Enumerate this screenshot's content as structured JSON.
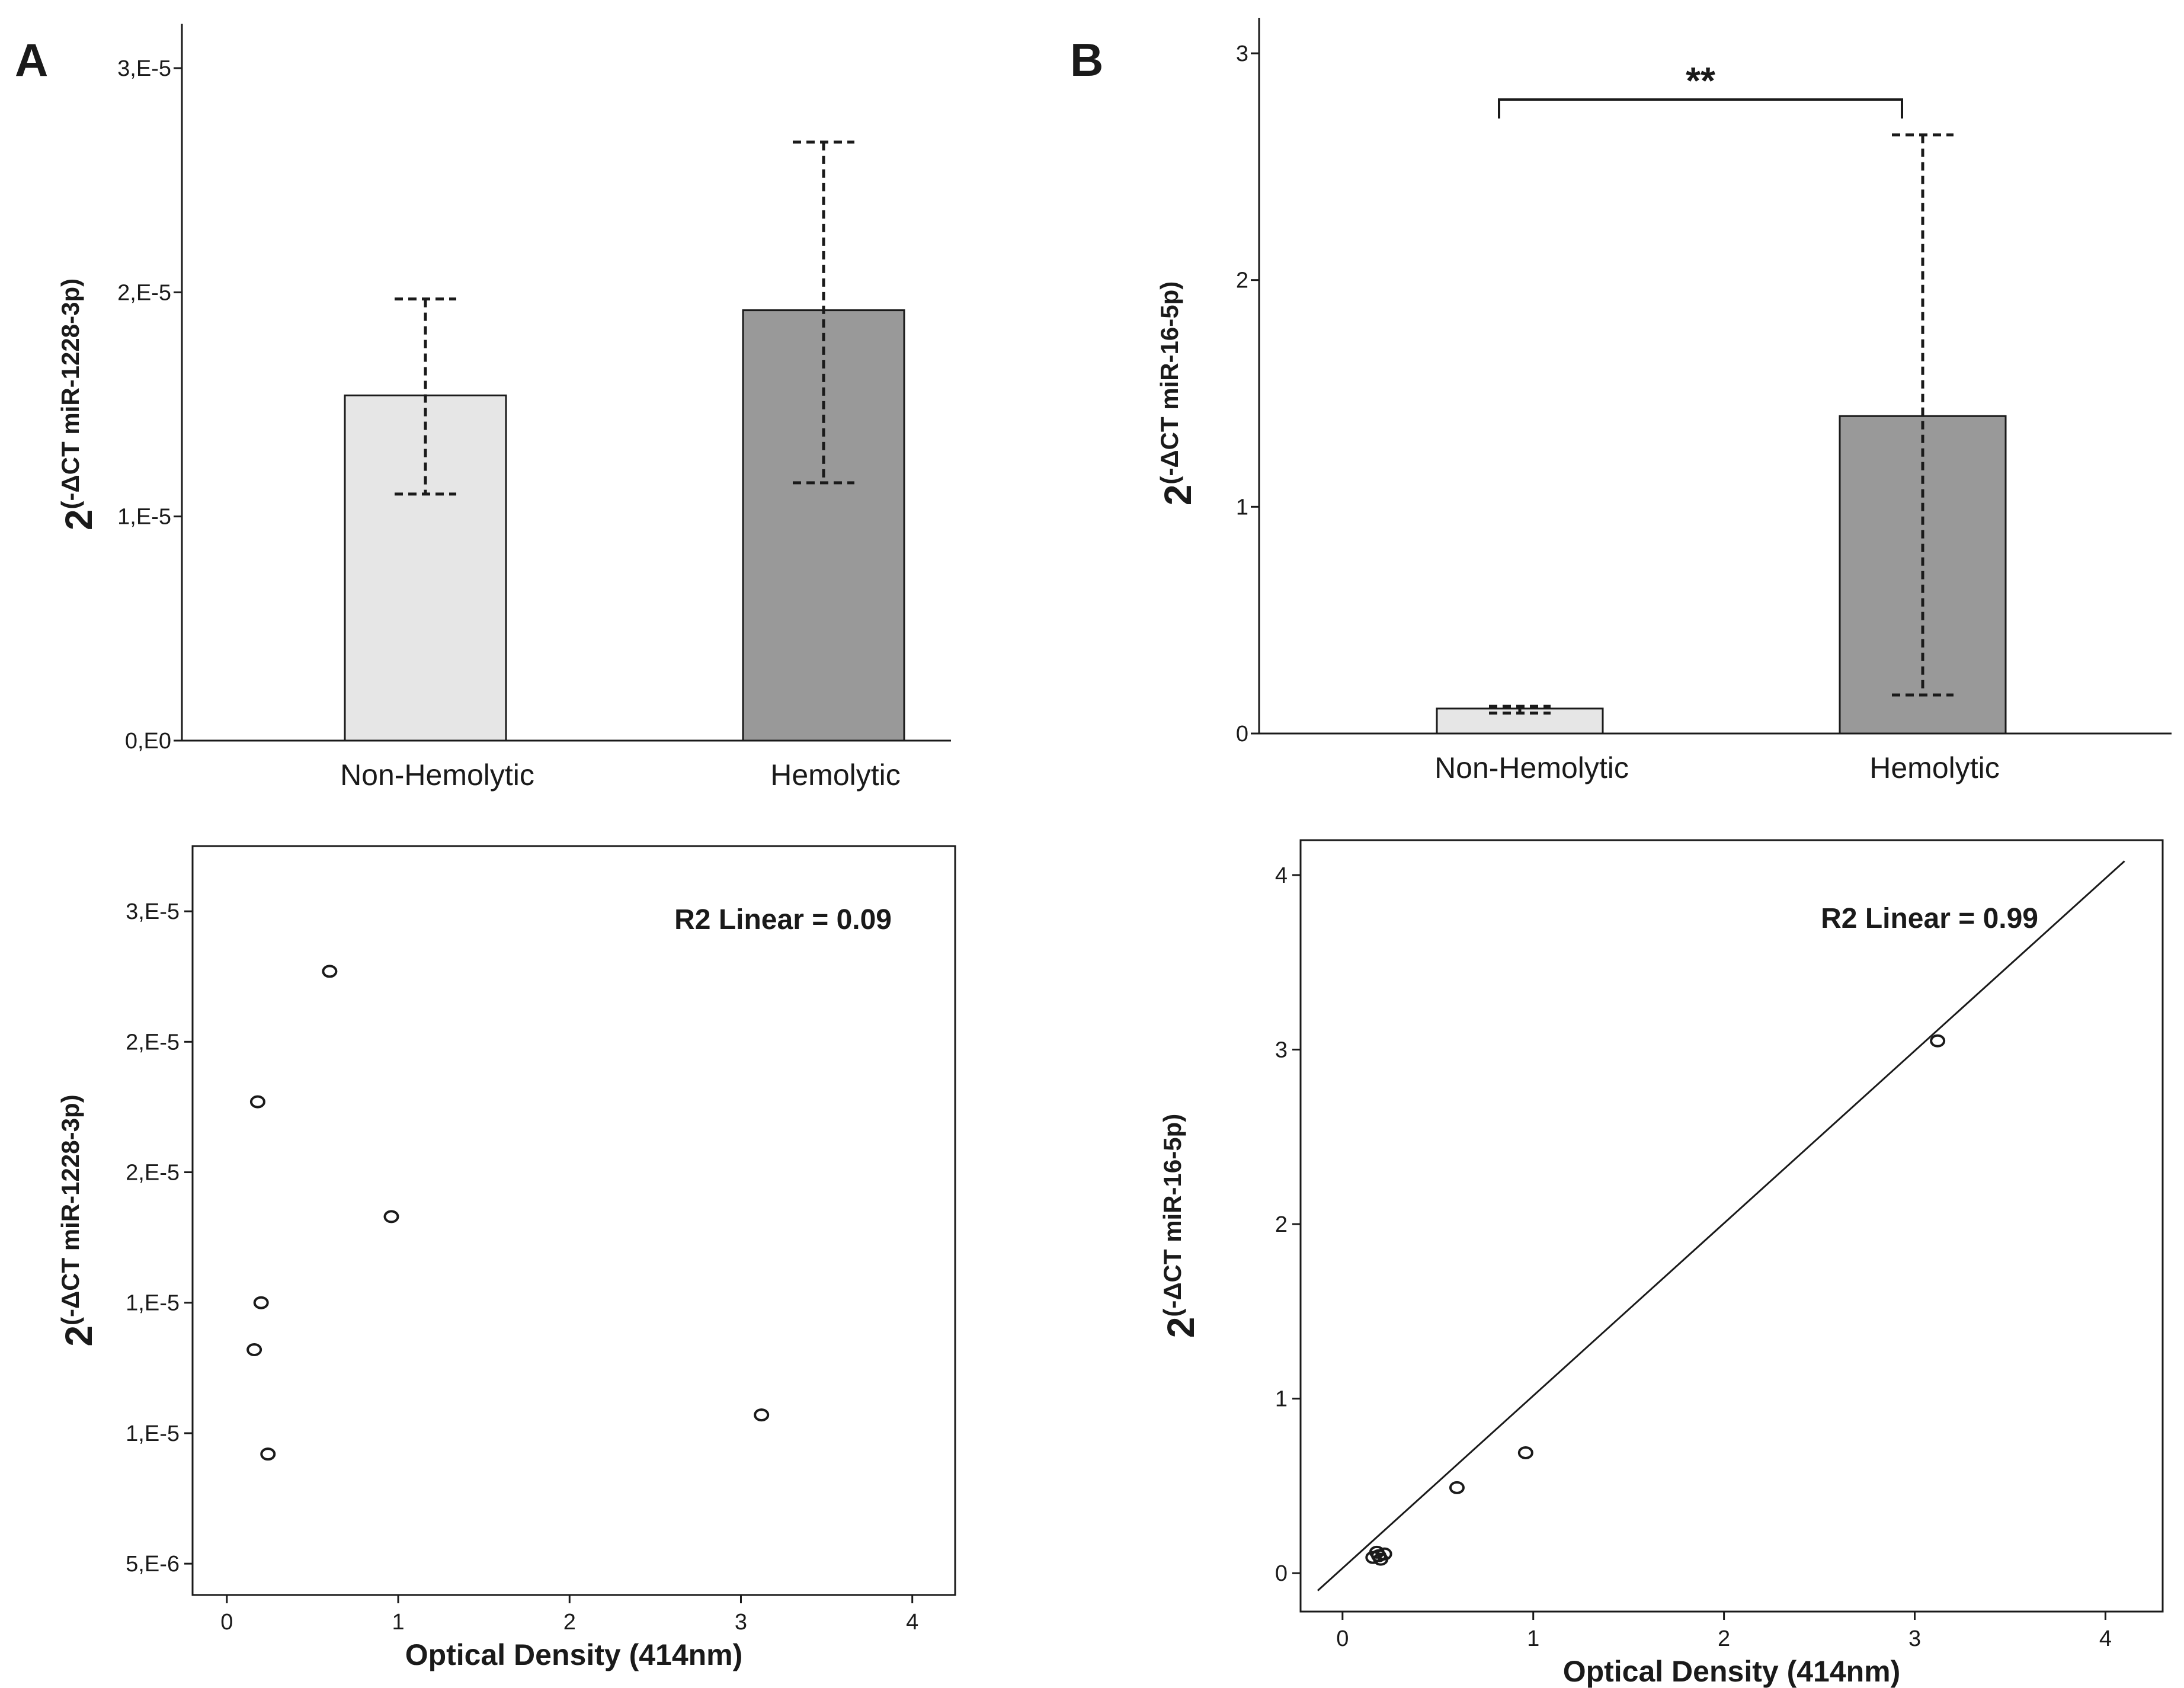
{
  "panel_labels": [
    "A",
    "B"
  ],
  "chart_data": [
    {
      "id": "A-bar",
      "type": "bar",
      "categories": [
        "Non-Hemolytic",
        "Hemolytic"
      ],
      "values": [
        1.54e-05,
        1.92e-05
      ],
      "error_low": [
        1.1e-05,
        1.15e-05
      ],
      "error_high": [
        1.97e-05,
        2.67e-05
      ],
      "bar_colors": [
        "#e6e6e6",
        "#999999"
      ],
      "yticks": [
        0,
        1e-05,
        2e-05,
        3e-05
      ],
      "ytick_labels": [
        "0,E0",
        "1,E-5",
        "2,E-5",
        "3,E-5"
      ],
      "ylim": [
        0,
        3e-05
      ],
      "ylabel": {
        "base": "2",
        "sup": "(-ΔCT miR-1228-3p)"
      },
      "grid": false
    },
    {
      "id": "B-bar",
      "type": "bar",
      "categories": [
        "Non-Hemolytic",
        "Hemolytic"
      ],
      "values": [
        0.11,
        1.4
      ],
      "error_low": [
        0.09,
        0.17
      ],
      "error_high": [
        0.12,
        2.64
      ],
      "bar_colors": [
        "#e6e6e6",
        "#999999"
      ],
      "yticks": [
        0,
        1,
        2,
        3
      ],
      "ytick_labels": [
        "0",
        "1",
        "2",
        "3"
      ],
      "ylim": [
        0,
        3
      ],
      "ylabel": {
        "base": "2",
        "sup": "(-ΔCT miR-16-5p)"
      },
      "significance": "**",
      "grid": false
    },
    {
      "id": "A-scatter",
      "type": "scatter",
      "x": [
        0.6,
        0.18,
        0.96,
        0.2,
        0.16,
        0.24,
        3.12
      ],
      "y": [
        2.77e-05,
        2.27e-05,
        1.83e-05,
        1.5e-05,
        1.32e-05,
        9.2e-06,
        1.07e-05
      ],
      "xticks": [
        0,
        1,
        2,
        3,
        4
      ],
      "xtick_labels": [
        "0",
        "1",
        "2",
        "3",
        "4"
      ],
      "xlim": [
        -0.2,
        4.25
      ],
      "ytick_values": [
        5e-06,
        1e-05,
        1.5e-05,
        2e-05,
        2.5e-05,
        3e-05
      ],
      "ytick_labels": [
        "5,E-6",
        "1,E-5",
        "1,E-5",
        "2,E-5",
        "2,E-5",
        "3,E-5"
      ],
      "ylim": [
        3.8e-06,
        3.25e-05
      ],
      "xlabel": "Optical Density (414nm)",
      "ylabel": {
        "base": "2",
        "sup": "(-ΔCT miR-1228-3p)"
      },
      "annotation": "R2 Linear = 0.09",
      "grid": false
    },
    {
      "id": "B-scatter",
      "type": "scatter",
      "x": [
        0.16,
        0.18,
        0.2,
        0.22,
        0.19,
        0.6,
        0.96,
        3.12
      ],
      "y": [
        0.09,
        0.12,
        0.08,
        0.11,
        0.1,
        0.49,
        0.69,
        3.05
      ],
      "fit": {
        "x": [
          -0.13,
          4.1
        ],
        "y": [
          -0.1,
          4.08
        ]
      },
      "xticks": [
        0,
        1,
        2,
        3,
        4
      ],
      "xtick_labels": [
        "0",
        "1",
        "2",
        "3",
        "4"
      ],
      "xlim": [
        -0.22,
        4.3
      ],
      "yticks": [
        0,
        1,
        2,
        3,
        4
      ],
      "ytick_labels": [
        "0",
        "1",
        "2",
        "3",
        "4"
      ],
      "ylim": [
        -0.22,
        4.2
      ],
      "xlabel": "Optical Density (414nm)",
      "ylabel": {
        "base": "2",
        "sup": "(-ΔCT miR-16-5p)"
      },
      "annotation": "R2 Linear = 0.99",
      "grid": false
    }
  ]
}
